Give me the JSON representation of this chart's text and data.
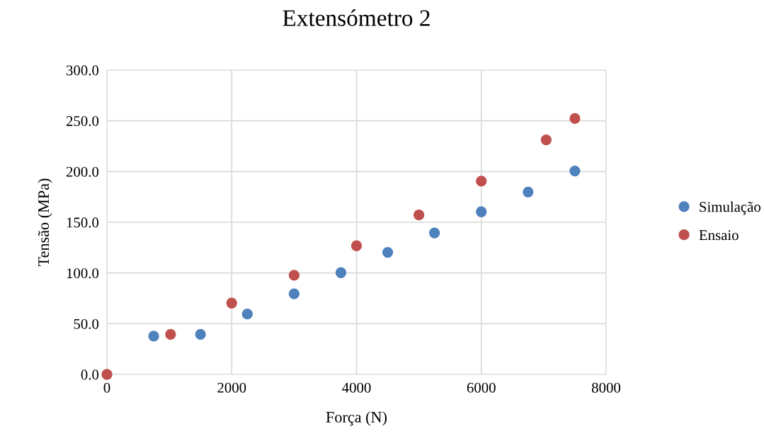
{
  "chart_data": {
    "type": "scatter",
    "title": "Extensómetro 2",
    "xlabel": "Força (N)",
    "ylabel": "Tensão (MPa)",
    "series": [
      {
        "name": "Simulação",
        "color": "#4f81bd",
        "x": [
          750,
          1500,
          2250,
          3000,
          3750,
          4500,
          5250,
          6000,
          6750,
          7500
        ],
        "values": [
          37.7,
          39.5,
          59.5,
          79.5,
          100.3,
          120.3,
          139.5,
          160.3,
          179.8,
          200.5
        ]
      },
      {
        "name": "Ensaio",
        "color": "#c0504d",
        "x": [
          0,
          1020,
          2000,
          3000,
          4000,
          5000,
          6000,
          7040,
          7500
        ],
        "values": [
          0,
          39.5,
          70.3,
          97.7,
          126.8,
          157.2,
          190.5,
          231.2,
          252.3
        ]
      }
    ],
    "xlim": [
      0,
      8000
    ],
    "xticks": [
      0,
      2000,
      4000,
      6000,
      8000
    ],
    "ylim": [
      0,
      300
    ],
    "yticks": [
      {
        "value": 0,
        "label": "0.0"
      },
      {
        "value": 50,
        "label": "50.0"
      },
      {
        "value": 100,
        "label": "100.0"
      },
      {
        "value": 150,
        "label": "150.0"
      },
      {
        "value": 200,
        "label": "200.0"
      },
      {
        "value": 250,
        "label": "250.0"
      },
      {
        "value": 300,
        "label": "300.0"
      }
    ],
    "grid": true,
    "legend": "right",
    "marker": "circle"
  }
}
